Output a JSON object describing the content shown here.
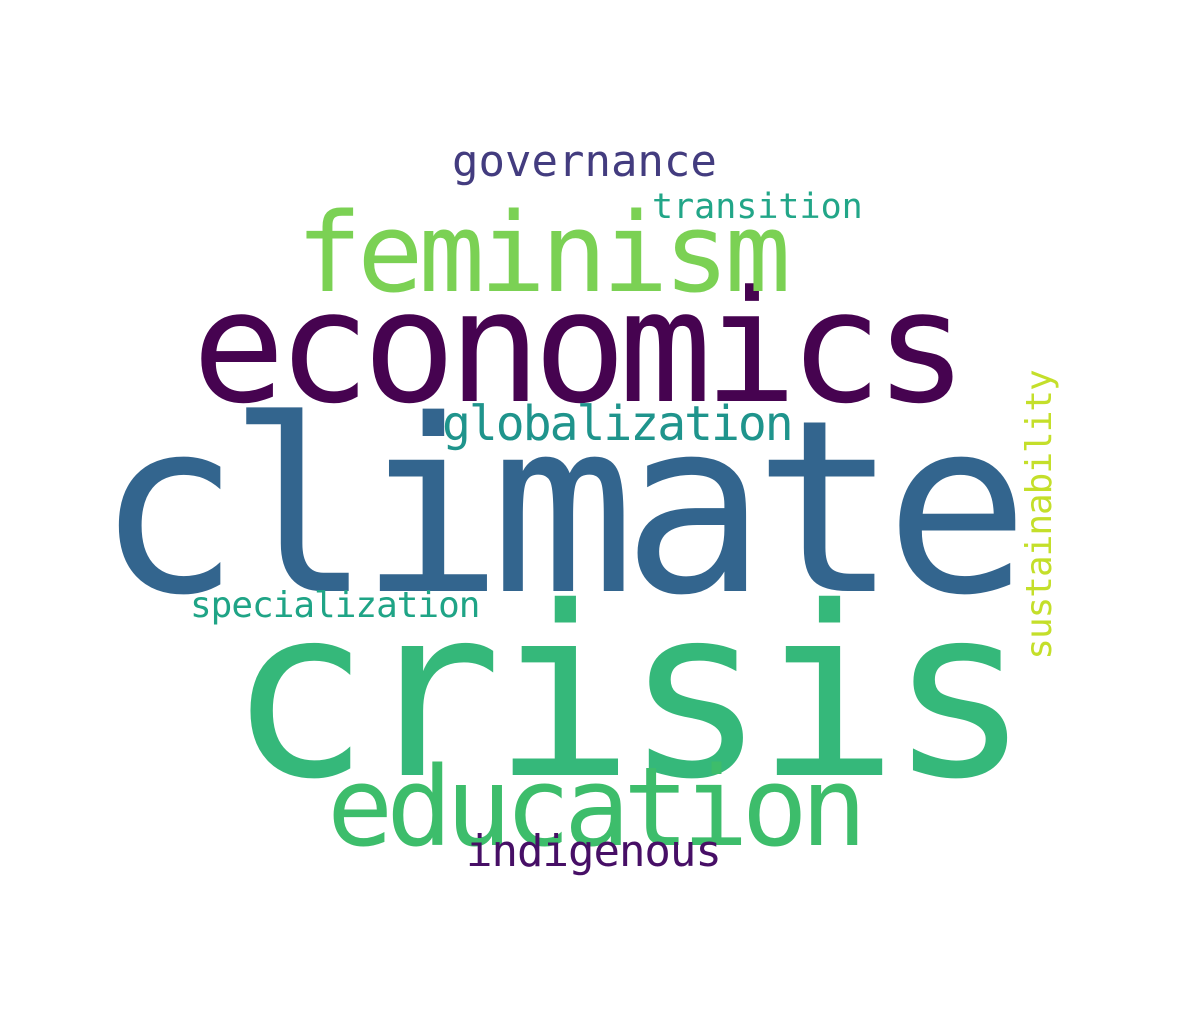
{
  "words": [
    {
      "text": "climate",
      "color": "#33658e"
    },
    {
      "text": "crisis",
      "color": "#35b87a"
    },
    {
      "text": "economics",
      "color": "#460350"
    },
    {
      "text": "feminism",
      "color": "#7bd154"
    },
    {
      "text": "education",
      "color": "#3dbd6b"
    },
    {
      "text": "globalization",
      "color": "#1f948c"
    },
    {
      "text": "governance",
      "color": "#433c7f"
    },
    {
      "text": "indigenous",
      "color": "#470f66"
    },
    {
      "text": "transition",
      "color": "#22a688"
    },
    {
      "text": "specialization",
      "color": "#1fa486"
    },
    {
      "text": "sustainability",
      "color": "#c4df2a"
    }
  ]
}
